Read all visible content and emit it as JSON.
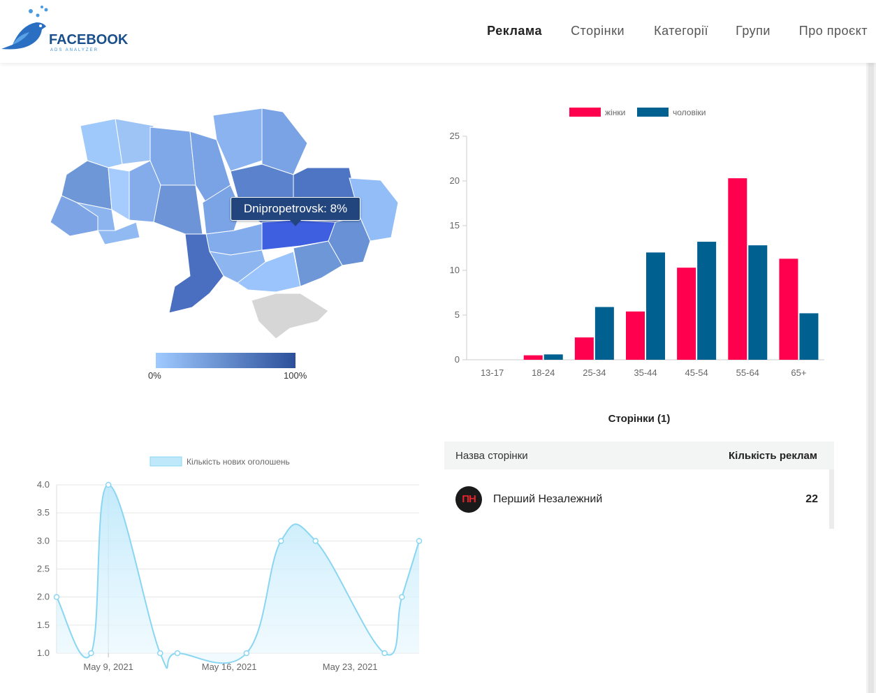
{
  "header": {
    "logo_text": "FACEBOOK",
    "logo_sub": "ADS ANALYZER",
    "nav": [
      {
        "label": "Реклама",
        "active": true
      },
      {
        "label": "Сторінки",
        "active": false
      },
      {
        "label": "Категорії",
        "active": false
      },
      {
        "label": "Групи",
        "active": false
      },
      {
        "label": "Про проєкт",
        "active": false
      }
    ]
  },
  "map": {
    "tooltip": "Dnipropetrovsk: 8%",
    "legend_min": "0%",
    "legend_max": "100%",
    "colors": {
      "low": "#9fcaff",
      "high": "#2c4f9a",
      "highlight": "#3d5fe0",
      "crimea": "#d6d6d6"
    }
  },
  "chart_data": [
    {
      "type": "bar",
      "categories": [
        "13-17",
        "18-24",
        "25-34",
        "35-44",
        "45-54",
        "55-64",
        "65+"
      ],
      "series": [
        {
          "name": "жінки",
          "color": "#ff004f",
          "values": [
            0,
            0.5,
            2.5,
            5.4,
            10.3,
            20.3,
            11.3
          ]
        },
        {
          "name": "чоловіки",
          "color": "#006090",
          "values": [
            0,
            0.6,
            5.9,
            12.0,
            13.2,
            12.8,
            5.2
          ]
        }
      ],
      "ylim": [
        0,
        25
      ],
      "yticks": [
        0,
        5,
        10,
        15,
        20,
        25
      ],
      "legend": "top-center",
      "grid": false
    },
    {
      "type": "area",
      "series": [
        {
          "name": "Кількість нових оголошень",
          "color": "#8ad6f2",
          "x": [
            "2021-05-06",
            "2021-05-08",
            "2021-05-09",
            "2021-05-12",
            "2021-05-13",
            "2021-05-17",
            "2021-05-19",
            "2021-05-21",
            "2021-05-25",
            "2021-05-26",
            "2021-05-27"
          ],
          "values": [
            2,
            1,
            4,
            1,
            1,
            1,
            3,
            3,
            1,
            2,
            3
          ]
        }
      ],
      "xticks": [
        "May 9, 2021",
        "May 16, 2021",
        "May 23, 2021"
      ],
      "ylim": [
        1,
        4
      ],
      "yticks": [
        "1.0",
        "1.5",
        "2.0",
        "2.5",
        "3.0",
        "3.5",
        "4.0"
      ],
      "legend": "top-center",
      "grid": true
    }
  ],
  "pages_table": {
    "title": "Сторінки (1)",
    "col_name": "Назва сторінки",
    "col_count": "Кількість реклам",
    "rows": [
      {
        "avatar": "ПН",
        "name": "Перший Незалежний",
        "count": "22"
      }
    ]
  }
}
